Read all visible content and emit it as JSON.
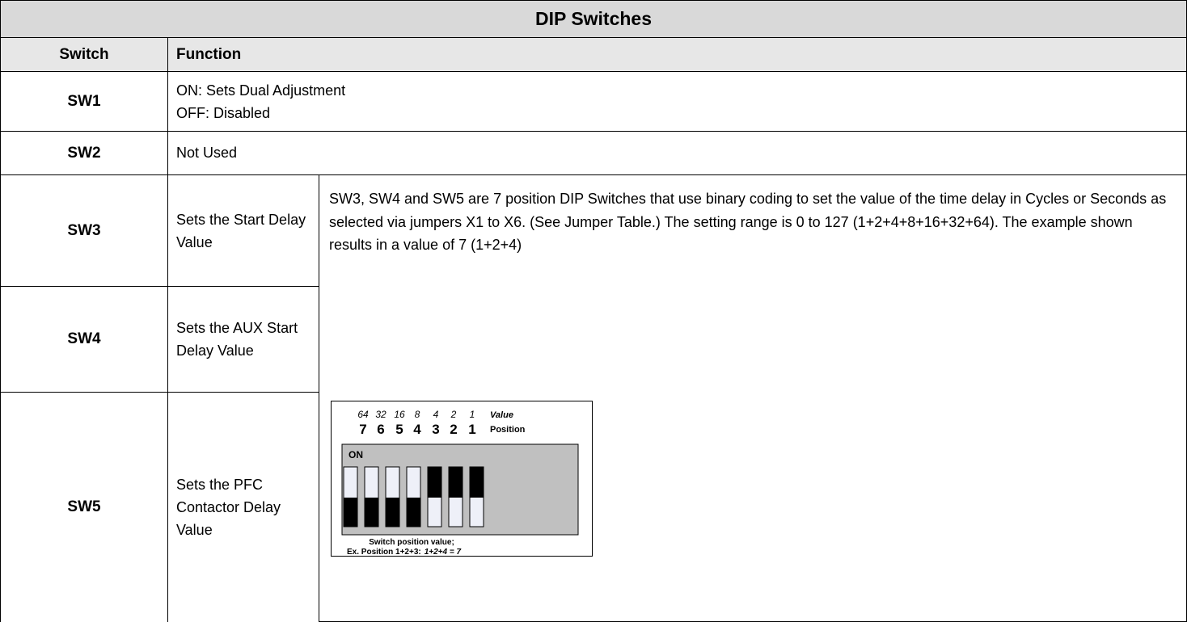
{
  "title": "DIP Switches",
  "header": [
    "Switch",
    "Function"
  ],
  "rows": [
    {
      "switch": "SW1",
      "lines": [
        "ON: Sets Dual Adjustment",
        "OFF: Disabled"
      ]
    },
    {
      "switch": "SW2",
      "function": "Not Used"
    },
    {
      "switch": "SW3",
      "function": "Sets the Start Delay Value"
    },
    {
      "switch": "SW4",
      "function": "Sets the AUX Start Delay Value"
    },
    {
      "switch": "SW5",
      "function": "Sets the PFC Contactor Delay Value"
    }
  ],
  "description": "SW3, SW4 and SW5 are 7 position DIP Switches that use binary coding to set the value of the time delay in Cycles or Seconds as selected via jumpers X1 to X6. (See Jumper Table.)  The setting range is 0 to 127 (1+2+4+8+16+32+64). The example shown results in a value of 7 (1+2+4)",
  "diagram": {
    "values": [
      "64",
      "32",
      "16",
      "8",
      "4",
      "2",
      "1"
    ],
    "value_label": "Value",
    "positions": [
      "7",
      "6",
      "5",
      "4",
      "3",
      "2",
      "1"
    ],
    "position_label": "Position",
    "on_label": "ON",
    "caption_1": "Switch position  value;",
    "caption_2_prefix": "Ex. Position 1+2+3:",
    "caption_2_sum": "1+2+4 = 7"
  }
}
